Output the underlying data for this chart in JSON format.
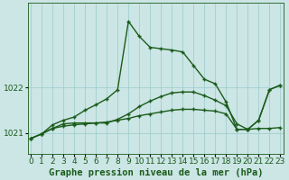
{
  "title": "Graphe pression niveau de la mer (hPa)",
  "bg_color": "#cce5e5",
  "grid_color": "#99cccc",
  "line_color": "#1a5c1a",
  "xlim": [
    -0.3,
    23.3
  ],
  "ylim": [
    1020.55,
    1023.85
  ],
  "yticks": [
    1021,
    1022
  ],
  "xticks": [
    0,
    1,
    2,
    3,
    4,
    5,
    6,
    7,
    8,
    9,
    10,
    11,
    12,
    13,
    14,
    15,
    16,
    17,
    18,
    19,
    20,
    21,
    22,
    23
  ],
  "line1_x": [
    0,
    1,
    2,
    3,
    4,
    5,
    6,
    7,
    8,
    9,
    10,
    11,
    12,
    13,
    14,
    15,
    16,
    17,
    18,
    19,
    20,
    21,
    22,
    23
  ],
  "line1_y": [
    1020.88,
    1020.98,
    1021.1,
    1021.15,
    1021.18,
    1021.2,
    1021.22,
    1021.24,
    1021.28,
    1021.32,
    1021.38,
    1021.42,
    1021.46,
    1021.5,
    1021.52,
    1021.52,
    1021.5,
    1021.48,
    1021.42,
    1021.08,
    1021.08,
    1021.1,
    1021.1,
    1021.12
  ],
  "line2_x": [
    0,
    1,
    2,
    3,
    4,
    5,
    6,
    7,
    8,
    9,
    10,
    11,
    12,
    13,
    14,
    15,
    16,
    17,
    18,
    19,
    20,
    21,
    22,
    23
  ],
  "line2_y": [
    1020.88,
    1020.98,
    1021.1,
    1021.2,
    1021.22,
    1021.22,
    1021.22,
    1021.22,
    1021.3,
    1021.42,
    1021.58,
    1021.7,
    1021.8,
    1021.88,
    1021.9,
    1021.9,
    1021.82,
    1021.72,
    1021.6,
    1021.2,
    1021.08,
    1021.28,
    1021.95,
    1022.05
  ],
  "line3_x": [
    0,
    1,
    2,
    3,
    4,
    5,
    6,
    7,
    8,
    9,
    10,
    11,
    12,
    13,
    14,
    15,
    16,
    17,
    18,
    19,
    20,
    21,
    22,
    23
  ],
  "line3_y": [
    1020.88,
    1020.98,
    1021.18,
    1021.28,
    1021.35,
    1021.5,
    1021.62,
    1021.75,
    1021.95,
    1023.45,
    1023.12,
    1022.88,
    1022.85,
    1022.82,
    1022.78,
    1022.48,
    1022.18,
    1022.08,
    1021.68,
    1021.08,
    1021.08,
    1021.28,
    1021.95,
    1022.05
  ],
  "tick_fontsize": 6.5,
  "label_fontsize": 7.5
}
